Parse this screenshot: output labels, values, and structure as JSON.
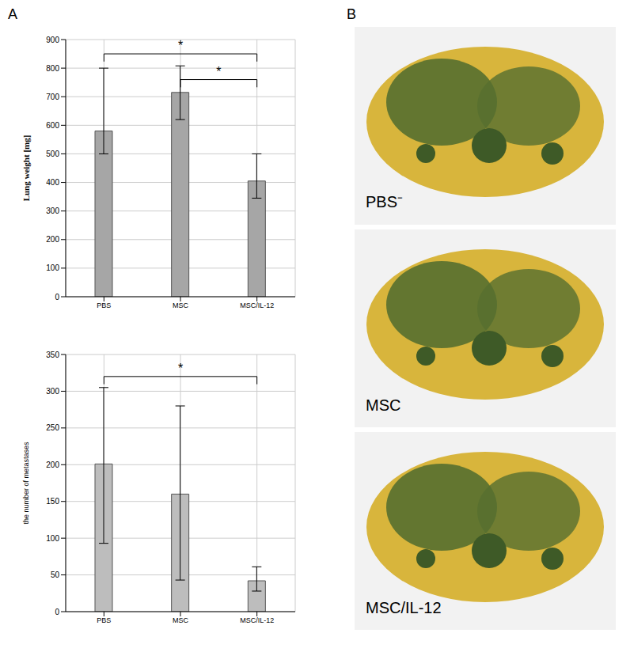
{
  "panel_labels": [
    "A",
    "B"
  ],
  "chart_data": [
    {
      "type": "bar",
      "y_label": "Lung weight [mg]",
      "categories": [
        "PBS",
        "MSC",
        "MSC/IL-12"
      ],
      "values": [
        580,
        715,
        405
      ],
      "error_bars": [
        [
          500,
          800
        ],
        [
          620,
          808
        ],
        [
          345,
          500
        ]
      ],
      "color": "#a6a6a6",
      "ylim": [
        0,
        900
      ],
      "yticks": [
        0,
        100,
        200,
        300,
        400,
        500,
        600,
        700,
        800,
        900
      ],
      "grid": true,
      "annotations": [
        {
          "text": "*",
          "from": "PBS",
          "to": "MSC/IL-12",
          "y": 850
        },
        {
          "text": "*",
          "from": "MSC",
          "to": "MSC/IL-12",
          "y": 760
        }
      ]
    },
    {
      "type": "bar",
      "y_label": "the number of metastases",
      "categories": [
        "PBS",
        "MSC",
        "MSC/IL-12"
      ],
      "values": [
        201,
        160,
        42
      ],
      "error_bars": [
        [
          93,
          305
        ],
        [
          43,
          280
        ],
        [
          28,
          61
        ]
      ],
      "color": "#bdbdbd",
      "ylim": [
        0,
        350
      ],
      "yticks": [
        0,
        50,
        100,
        150,
        200,
        250,
        300,
        350
      ],
      "grid": true,
      "annotations": [
        {
          "text": "*",
          "from": "PBS",
          "to": "MSC/IL-12",
          "y": 320
        }
      ]
    }
  ],
  "photos": {
    "labels": [
      "PBS⁻",
      "MSC",
      "MSC/IL-12"
    ]
  }
}
